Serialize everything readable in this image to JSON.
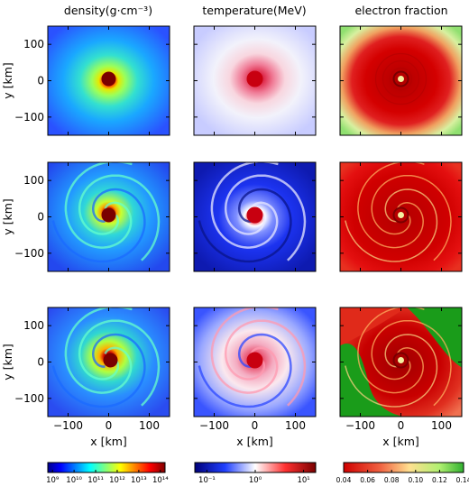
{
  "chart_data": {
    "type": "heatmap",
    "columns": [
      {
        "quantity": "density",
        "title": "density(g·cm⁻³)",
        "colormap": "jet",
        "scale": "log",
        "colorbar_ticks": [
          "10⁹",
          "10¹⁰",
          "10¹¹",
          "10¹²",
          "10¹³",
          "10¹⁴"
        ]
      },
      {
        "quantity": "temperature",
        "title": "temperature(MeV)",
        "colormap": "blue-white-red",
        "scale": "log",
        "colorbar_ticks": [
          "10⁻¹",
          "10⁰",
          "10¹"
        ]
      },
      {
        "quantity": "electron fraction",
        "title": "electron fraction",
        "colormap": "red-yellow-green",
        "scale": "linear",
        "colorbar_ticks": [
          "0.04",
          "0.06",
          "0.08",
          "0.10",
          "0.12",
          "0.14"
        ]
      }
    ],
    "rows": 3,
    "xlabel": "x [km]",
    "ylabel": "y [km]",
    "xlim": [
      -150,
      150
    ],
    "ylim": [
      -150,
      150
    ],
    "xticks": [
      -100,
      0,
      100
    ],
    "yticks": [
      -100,
      0,
      100
    ],
    "colors": {
      "density_background": "#2a52ff",
      "density_core": "#8b0000",
      "temperature_background": "#1f3cff",
      "temperature_core": "#cc0000",
      "ye_background": "#e00000",
      "ye_outer_high": "#1a9c1a"
    }
  }
}
